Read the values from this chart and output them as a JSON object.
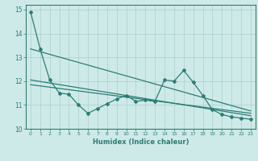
{
  "title": "",
  "xlabel": "Humidex (Indice chaleur)",
  "background_color": "#ceeae8",
  "grid_color": "#afd4d0",
  "line_color": "#2d7d75",
  "xlim": [
    -0.5,
    23.5
  ],
  "ylim": [
    10.0,
    15.2
  ],
  "yticks": [
    10,
    11,
    12,
    13,
    14,
    15
  ],
  "xticks": [
    0,
    1,
    2,
    3,
    4,
    5,
    6,
    7,
    8,
    9,
    10,
    11,
    12,
    13,
    14,
    15,
    16,
    17,
    18,
    19,
    20,
    21,
    22,
    23
  ],
  "series1_x": [
    0,
    1,
    2,
    3,
    4,
    5,
    6,
    7,
    8,
    9,
    10,
    11,
    12,
    13,
    14,
    15,
    16,
    17,
    18,
    19,
    20,
    21,
    22,
    23
  ],
  "series1_y": [
    14.9,
    13.35,
    12.05,
    11.5,
    11.45,
    11.0,
    10.65,
    10.85,
    11.05,
    11.25,
    11.4,
    11.15,
    11.2,
    11.15,
    12.05,
    12.0,
    12.45,
    11.95,
    11.4,
    10.8,
    10.6,
    10.5,
    10.45,
    10.4
  ],
  "trend1_x": [
    0,
    23
  ],
  "trend1_y": [
    13.35,
    10.75
  ],
  "trend2_x": [
    0,
    23
  ],
  "trend2_y": [
    12.05,
    10.55
  ],
  "trend3_x": [
    0,
    23
  ],
  "trend3_y": [
    11.85,
    10.65
  ]
}
